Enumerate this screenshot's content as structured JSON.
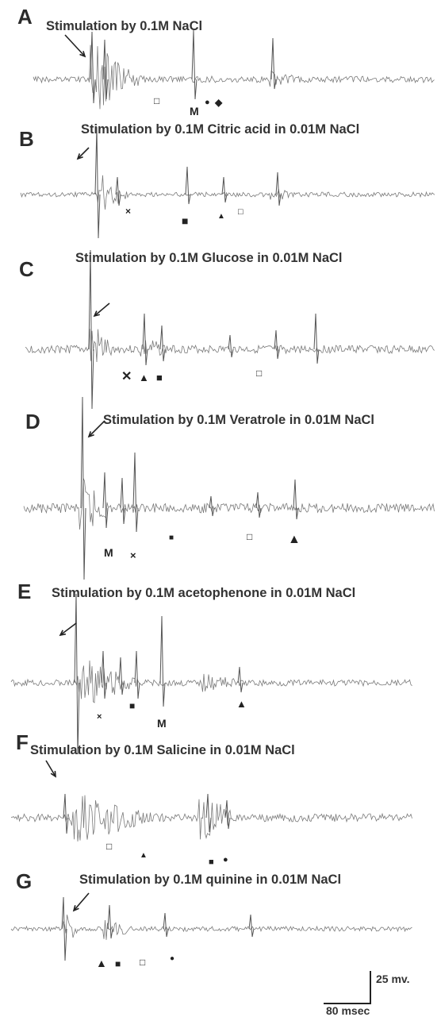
{
  "panels": [
    {
      "letter": "A",
      "title": "Stimulation by 0.1M NaCl",
      "markers": [
        "□",
        "M",
        "●",
        "◆"
      ]
    },
    {
      "letter": "B",
      "title": "Stimulation by 0.1M Citric acid in 0.01M NaCl",
      "markers": [
        "×",
        "■",
        "▲",
        "□"
      ]
    },
    {
      "letter": "C",
      "title": "Stimulation by 0.1M Glucose in 0.01M NaCl",
      "markers": [
        "✕",
        "▲",
        "■",
        "□"
      ]
    },
    {
      "letter": "D",
      "title": "Stimulation by 0.1M Veratrole in 0.01M NaCl",
      "markers": [
        "M",
        "×",
        "■",
        "□",
        "▲"
      ]
    },
    {
      "letter": "E",
      "title": "Stimulation by 0.1M acetophenone in 0.01M NaCl",
      "markers": [
        "×",
        "■",
        "M",
        "▲"
      ]
    },
    {
      "letter": "F",
      "title": "Stimulation by 0.1M Salicine in 0.01M NaCl",
      "markers": [
        "□",
        "▲",
        "■",
        "●"
      ]
    },
    {
      "letter": "G",
      "title": "Stimulation by 0.1M quinine in 0.01M NaCl",
      "markers": [
        "▲",
        "■",
        "□",
        "●"
      ]
    }
  ],
  "scale_bar": {
    "amplitude_label": "25 mv.",
    "time_label": "80 msec"
  },
  "colors": {
    "trace": "#7a7a7a",
    "text": "#333333",
    "arrow": "#222222"
  }
}
